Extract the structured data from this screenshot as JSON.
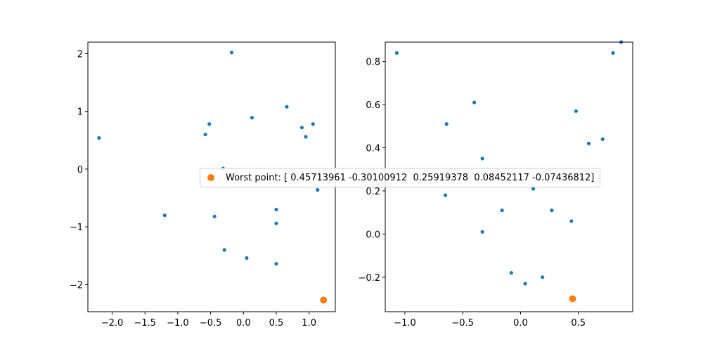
{
  "chart_data": [
    {
      "type": "scatter",
      "xlim": [
        -2.37,
        1.4
      ],
      "ylim": [
        -2.47,
        2.2
      ],
      "xticks": [
        -2.0,
        -1.5,
        -1.0,
        -0.5,
        0.0,
        0.5,
        1.0
      ],
      "xtick_labels": [
        "−2.0",
        "−1.5",
        "−1.0",
        "−0.5",
        "0.0",
        "0.5",
        "1.0"
      ],
      "yticks": [
        2,
        1,
        0,
        -1,
        -2
      ],
      "ytick_labels": [
        "2",
        "1",
        "0",
        "−1",
        "−2"
      ],
      "grid": false,
      "series": [
        {
          "color": "#1f77b4",
          "x": [
            -2.2,
            -0.18,
            0.13,
            0.66,
            -0.58,
            -0.52,
            0.89,
            0.95,
            1.06,
            -0.31,
            1.13,
            -1.2,
            -0.44,
            0.5,
            0.5,
            -0.29,
            0.05,
            0.5
          ],
          "y": [
            0.54,
            2.02,
            0.89,
            1.08,
            0.6,
            0.78,
            0.72,
            0.56,
            0.78,
            0.01,
            -0.36,
            -0.8,
            -0.82,
            -0.7,
            -0.94,
            -1.4,
            -1.54,
            -1.64
          ]
        },
        {
          "name": "Worst point: [ 0.45713961 -0.30100912  0.25919378  0.08452117 -0.07436812]",
          "color": "#ff7f0e",
          "x": [
            1.22
          ],
          "y": [
            -2.27
          ]
        }
      ]
    },
    {
      "type": "scatter",
      "xlim": [
        -1.17,
        0.97
      ],
      "ylim": [
        -0.36,
        0.89
      ],
      "xticks": [
        -1.0,
        -0.5,
        0.0,
        0.5
      ],
      "xtick_labels": [
        "−1.0",
        "−0.5",
        "0.0",
        "0.5"
      ],
      "yticks": [
        0.8,
        0.6,
        0.4,
        0.2,
        0.0,
        -0.2
      ],
      "ytick_labels": [
        "0.8",
        "0.6",
        "0.4",
        "0.2",
        "0.0",
        "−0.2"
      ],
      "grid": false,
      "series": [
        {
          "color": "#1f77b4",
          "x": [
            -1.07,
            -0.4,
            -0.64,
            -0.33,
            0.87,
            0.8,
            0.48,
            0.59,
            0.71,
            0.11,
            -0.65,
            -0.16,
            0.27,
            0.44,
            -0.33,
            -0.08,
            0.04,
            0.19
          ],
          "y": [
            0.84,
            0.61,
            0.51,
            0.35,
            0.89,
            0.84,
            0.57,
            0.42,
            0.44,
            0.21,
            0.18,
            0.11,
            0.11,
            0.06,
            0.01,
            -0.18,
            -0.23,
            -0.2
          ]
        },
        {
          "name": "Worst point: [ 0.45713961 -0.30100912  0.25919378  0.08452117 -0.07436812]",
          "color": "#ff7f0e",
          "x": [
            0.45
          ],
          "y": [
            -0.3
          ]
        }
      ]
    }
  ],
  "legend": {
    "label": "Worst point: [ 0.45713961 -0.30100912  0.25919378  0.08452117 -0.07436812]",
    "marker_color": "#ff7f0e",
    "placement": "center"
  }
}
